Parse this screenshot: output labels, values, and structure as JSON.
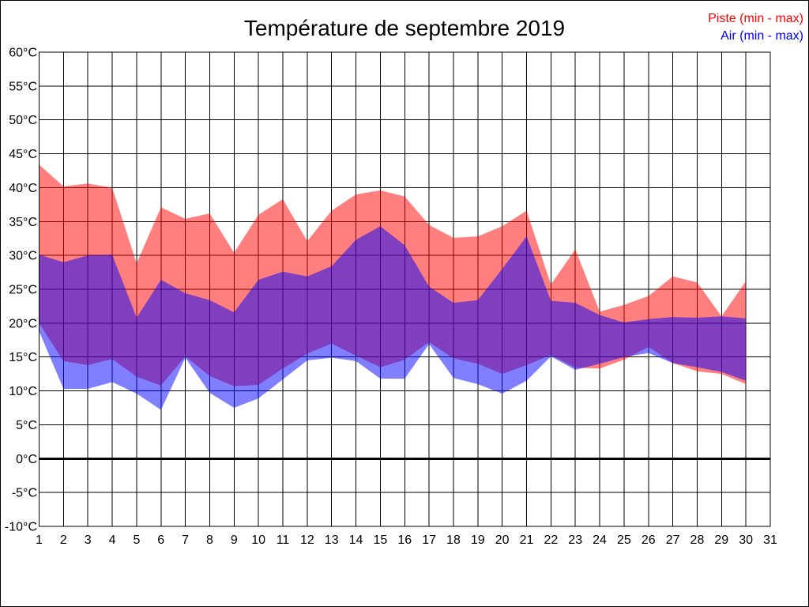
{
  "chart_data": {
    "type": "area",
    "title": "Température de septembre 2019",
    "days": [
      1,
      2,
      3,
      4,
      5,
      6,
      7,
      8,
      9,
      10,
      11,
      12,
      13,
      14,
      15,
      16,
      17,
      18,
      19,
      20,
      21,
      22,
      23,
      24,
      25,
      26,
      27,
      28,
      29,
      30
    ],
    "series": [
      {
        "name": "Piste (min - max)",
        "color": "#ff0000",
        "max": [
          43.4,
          40.2,
          40.6,
          40.0,
          28.8,
          37.1,
          35.4,
          36.2,
          30.4,
          36.0,
          38.3,
          32.1,
          36.6,
          39.0,
          39.6,
          38.7,
          34.5,
          32.6,
          32.8,
          34.3,
          36.6,
          25.7,
          30.9,
          21.7,
          22.7,
          24.0,
          26.9,
          26.0,
          21.0,
          26.2
        ],
        "min": [
          20.0,
          14.4,
          13.8,
          14.7,
          12.1,
          10.8,
          15.1,
          12.2,
          10.7,
          10.9,
          13.3,
          15.5,
          17.0,
          15.2,
          13.5,
          14.6,
          17.2,
          14.8,
          14.0,
          12.5,
          13.8,
          15.3,
          13.4,
          13.3,
          14.6,
          16.5,
          14.1,
          12.9,
          12.5,
          11.0
        ]
      },
      {
        "name": "Air (min - max)",
        "color": "#0000ff",
        "max": [
          30.1,
          29.0,
          30.0,
          30.1,
          20.8,
          26.4,
          24.4,
          23.4,
          21.6,
          26.4,
          27.6,
          26.9,
          28.4,
          32.3,
          34.3,
          31.5,
          25.4,
          23.0,
          23.4,
          28.0,
          32.8,
          23.3,
          23.0,
          21.2,
          20.1,
          20.6,
          20.9,
          20.8,
          21.0,
          20.7
        ],
        "min": [
          18.8,
          10.3,
          10.3,
          11.3,
          9.6,
          7.2,
          14.9,
          9.7,
          7.5,
          8.9,
          11.7,
          14.5,
          14.9,
          14.4,
          11.8,
          11.8,
          16.9,
          11.9,
          11.0,
          9.6,
          11.5,
          15.1,
          13.1,
          14.0,
          15.0,
          15.6,
          14.1,
          13.5,
          12.8,
          11.5
        ]
      }
    ],
    "fill_opacity": 0.5,
    "ylim": [
      -10,
      60
    ],
    "ytick_step": 5,
    "y_tick_labels": [
      "60°C",
      "55°C",
      "50°C",
      "45°C",
      "40°C",
      "35°C",
      "30°C",
      "25°C",
      "20°C",
      "15°C",
      "10°C",
      "5°C",
      "0°C",
      "-5°C",
      "-10°C"
    ],
    "x_tick_labels": [
      "1",
      "2",
      "3",
      "4",
      "5",
      "6",
      "7",
      "8",
      "9",
      "10",
      "11",
      "12",
      "13",
      "14",
      "15",
      "16",
      "17",
      "18",
      "19",
      "20",
      "21",
      "22",
      "23",
      "24",
      "25",
      "26",
      "27",
      "28",
      "29",
      "30",
      "31"
    ],
    "grid": true,
    "grid_color": "#000000",
    "zero_line": true,
    "legend_position": "top-right",
    "background": "#ffffff"
  }
}
